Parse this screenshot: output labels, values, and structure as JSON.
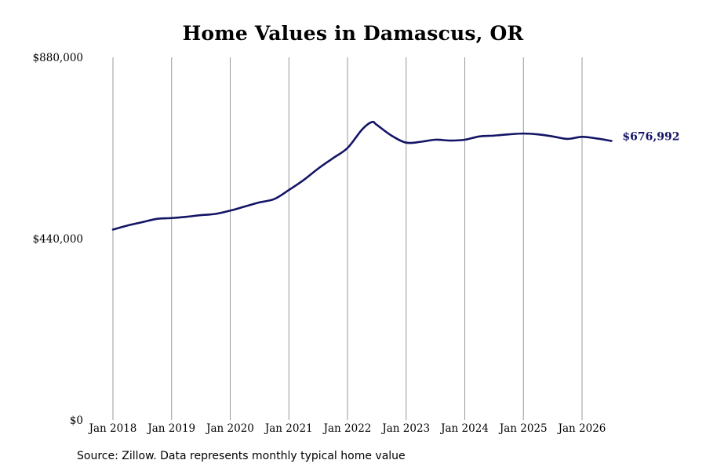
{
  "chart_data": {
    "type": "line",
    "title": "Home Values in Damascus, OR",
    "source": "Source: Zillow. Data represents monthly typical home value",
    "xlabel": "",
    "ylabel": "",
    "ylim": [
      0,
      880000
    ],
    "y_ticks": [
      {
        "value": 0,
        "label": "$0"
      },
      {
        "value": 440000,
        "label": "$440,000"
      },
      {
        "value": 880000,
        "label": "$880,000"
      }
    ],
    "x_ticks": [
      "Jan 2018",
      "Jan 2019",
      "Jan 2020",
      "Jan 2021",
      "Jan 2022",
      "Jan 2023",
      "Jan 2024",
      "Jan 2025",
      "Jan 2026"
    ],
    "x_range": [
      "2018-01",
      "2026-07"
    ],
    "grid": "vertical",
    "end_label": "$676,992",
    "colors": {
      "line": "#141466",
      "grid": "#999999"
    },
    "series": [
      {
        "x": [
          "2018-01",
          "2018-04",
          "2018-07",
          "2018-10",
          "2019-01",
          "2019-04",
          "2019-07",
          "2019-10",
          "2020-01",
          "2020-04",
          "2020-07",
          "2020-10",
          "2021-01",
          "2021-04",
          "2021-07",
          "2021-10",
          "2022-01",
          "2022-04",
          "2022-06",
          "2022-07",
          "2022-10",
          "2023-01",
          "2023-04",
          "2023-07",
          "2023-10",
          "2024-01",
          "2024-04",
          "2024-07",
          "2024-10",
          "2025-01",
          "2025-04",
          "2025-07",
          "2025-10",
          "2026-01",
          "2026-04",
          "2026-07"
        ],
        "values": [
          462000,
          472000,
          480000,
          488000,
          490000,
          493000,
          497000,
          500000,
          508000,
          518000,
          528000,
          536000,
          558000,
          582000,
          610000,
          635000,
          660000,
          705000,
          723000,
          716000,
          690000,
          673000,
          675000,
          680000,
          678000,
          680000,
          688000,
          690000,
          693000,
          695000,
          693000,
          688000,
          682000,
          687000,
          683000,
          677000
        ]
      }
    ]
  }
}
